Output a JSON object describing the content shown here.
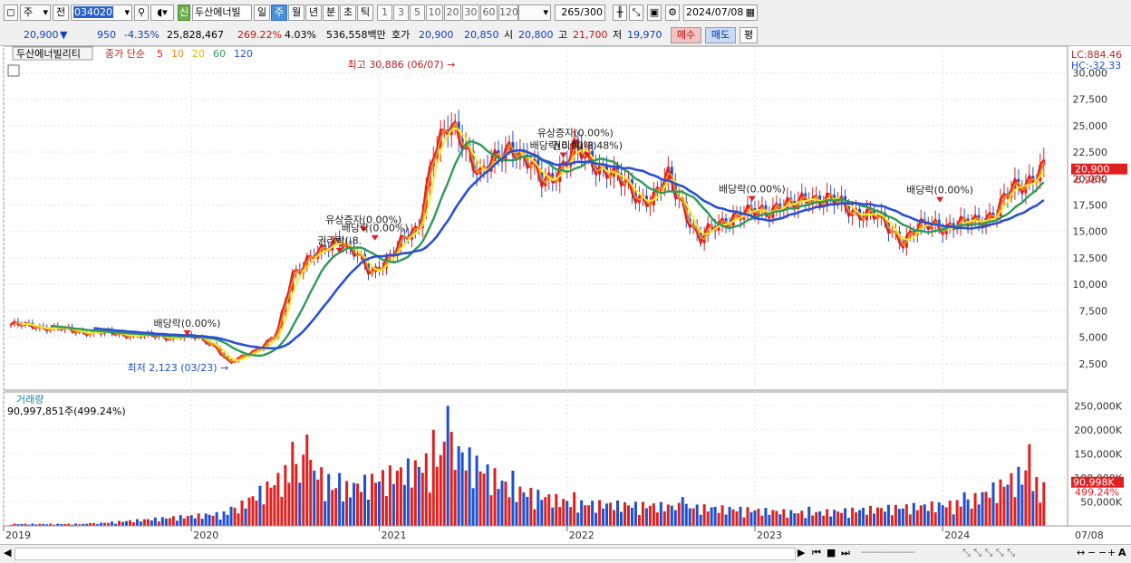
{
  "toolbar": {
    "period_select": "주",
    "compare_select": "전",
    "code": "034020",
    "new_badge": "신",
    "stock_name": "두산에너빌",
    "periods": [
      "일",
      "주",
      "월",
      "년",
      "분",
      "초",
      "틱"
    ],
    "active_period": "주",
    "intervals": [
      "1",
      "3",
      "5",
      "10",
      "20",
      "30",
      "60",
      "120"
    ],
    "count_value": "265",
    "count_total": "/300",
    "date": "2024/07/08"
  },
  "quote": {
    "price": "20,900",
    "arrow": "▼",
    "change": "950",
    "change_pct": "-4.35%",
    "volume": "25,828,467",
    "vol_ratio": "269.22%",
    "turnover": "4.03%",
    "amount": "536,558백만",
    "hoga_label": "호가",
    "ask": "20,900",
    "bid": "20,850",
    "open_label": "시",
    "open": "20,800",
    "high_label": "고",
    "high": "21,700",
    "low_label": "저",
    "low": "19,970",
    "buy_button": "매수",
    "sell_button": "매도",
    "eval_button": "평"
  },
  "colors": {
    "up": "#e02020",
    "down": "#1d4fd0",
    "ma5": "#e02020",
    "ma10": "#f08c1e",
    "ma20": "#f5ec2e",
    "ma60": "#2f9a58",
    "ma120": "#2a4fd6"
  },
  "chart_data": {
    "type": "candlestick",
    "title": "두산에너빌리티",
    "ma_legend": {
      "label": "종가 단순",
      "periods": [
        "5",
        "10",
        "20",
        "60",
        "120"
      ]
    },
    "y_axis": {
      "range": [
        0,
        32000
      ],
      "ticks": [
        "2,500",
        "5,000",
        "7,500",
        "10,000",
        "12,500",
        "15,000",
        "17,500",
        "20,000",
        "22,500",
        "25,000",
        "27,500",
        "30,000"
      ]
    },
    "x_axis": {
      "labels": [
        "2019",
        "2020",
        "2021",
        "2022",
        "2023",
        "2024"
      ],
      "last_label": "07/08"
    },
    "lc_label": "LC:884.46",
    "hc_label": "HC:-32.33",
    "current_price_label": "20,900",
    "current_pct_label": "6.96%",
    "annotations": [
      {
        "text": "최고 30,886 (06/07)",
        "x": "2021-06-07",
        "price": 30886,
        "kind": "high"
      },
      {
        "text": "최저 2,123 (03/23)",
        "x": "2020-03-23",
        "price": 2123,
        "kind": "low"
      },
      {
        "text": "배당락(0.00%)",
        "x": "2019-12-23",
        "price": 6000
      },
      {
        "text": "권리락(-8.",
        "x": "2020-10-15",
        "price": 13800
      },
      {
        "text": "유상증자(0.00%)",
        "x": "2020-12-01",
        "price": 15800
      },
      {
        "text": "배당락(0.00%)",
        "x": "2020-12-23",
        "price": 15000
      },
      {
        "text": "유상증자(0.00%)",
        "x": "2022-01-17",
        "price": 24000
      },
      {
        "text": "배당락(0.00%)",
        "x": "2021-12-24",
        "price": 22800
      },
      {
        "text": "권리락(-3.48%)",
        "x": "2022-02-10",
        "price": 22800
      },
      {
        "text": "배당락(0.00%)",
        "x": "2022-12-26",
        "price": 18700
      },
      {
        "text": "배당락(0.00%)",
        "x": "2023-12-26",
        "price": 18600
      }
    ],
    "weekly_close_keypoints": [
      {
        "x": "2019-01",
        "close": 6200
      },
      {
        "x": "2019-03",
        "close": 6000
      },
      {
        "x": "2019-05",
        "close": 5600
      },
      {
        "x": "2019-07",
        "close": 5400
      },
      {
        "x": "2019-09",
        "close": 5200
      },
      {
        "x": "2019-11",
        "close": 5000
      },
      {
        "x": "2019-12",
        "close": 5100
      },
      {
        "x": "2020-01",
        "close": 4900
      },
      {
        "x": "2020-02",
        "close": 4300
      },
      {
        "x": "2020-03",
        "close": 2500
      },
      {
        "x": "2020-04",
        "close": 3300
      },
      {
        "x": "2020-05",
        "close": 4100
      },
      {
        "x": "2020-06",
        "close": 5200
      },
      {
        "x": "2020-07",
        "close": 11000
      },
      {
        "x": "2020-08",
        "close": 12500
      },
      {
        "x": "2020-09",
        "close": 13000
      },
      {
        "x": "2020-10",
        "close": 14500
      },
      {
        "x": "2020-11",
        "close": 13000
      },
      {
        "x": "2020-12",
        "close": 10800
      },
      {
        "x": "2021-01",
        "close": 12500
      },
      {
        "x": "2021-02",
        "close": 14000
      },
      {
        "x": "2021-03",
        "close": 15000
      },
      {
        "x": "2021-04",
        "close": 23000
      },
      {
        "x": "2021-05",
        "close": 24500
      },
      {
        "x": "2021-06",
        "close": 23500
      },
      {
        "x": "2021-07",
        "close": 20500
      },
      {
        "x": "2021-08",
        "close": 21500
      },
      {
        "x": "2021-09",
        "close": 23500
      },
      {
        "x": "2021-10",
        "close": 21500
      },
      {
        "x": "2021-11",
        "close": 19500
      },
      {
        "x": "2021-12",
        "close": 21000
      },
      {
        "x": "2022-01",
        "close": 22500
      },
      {
        "x": "2022-02",
        "close": 21800
      },
      {
        "x": "2022-03",
        "close": 21000
      },
      {
        "x": "2022-04",
        "close": 19500
      },
      {
        "x": "2022-05",
        "close": 18500
      },
      {
        "x": "2022-06",
        "close": 18000
      },
      {
        "x": "2022-07",
        "close": 20000
      },
      {
        "x": "2022-08",
        "close": 17500
      },
      {
        "x": "2022-09",
        "close": 14000
      },
      {
        "x": "2022-10",
        "close": 15500
      },
      {
        "x": "2022-11",
        "close": 16500
      },
      {
        "x": "2022-12",
        "close": 16500
      },
      {
        "x": "2023-01",
        "close": 17000
      },
      {
        "x": "2023-02",
        "close": 17500
      },
      {
        "x": "2023-03",
        "close": 17200
      },
      {
        "x": "2023-04",
        "close": 18500
      },
      {
        "x": "2023-05",
        "close": 18000
      },
      {
        "x": "2023-06",
        "close": 17500
      },
      {
        "x": "2023-07",
        "close": 17000
      },
      {
        "x": "2023-08",
        "close": 16500
      },
      {
        "x": "2023-09",
        "close": 15500
      },
      {
        "x": "2023-10",
        "close": 14200
      },
      {
        "x": "2023-11",
        "close": 15200
      },
      {
        "x": "2023-12",
        "close": 15800
      },
      {
        "x": "2024-01",
        "close": 15500
      },
      {
        "x": "2024-02",
        "close": 15600
      },
      {
        "x": "2024-03",
        "close": 16300
      },
      {
        "x": "2024-04",
        "close": 16800
      },
      {
        "x": "2024-05",
        "close": 19000
      },
      {
        "x": "2024-06",
        "close": 20000
      },
      {
        "x": "2024-07",
        "close": 20900
      }
    ],
    "volume_panel": {
      "label": "거래량",
      "current_label": "90,997,851주(499.24%)",
      "y_ticks": [
        "50,000K",
        "100,000K",
        "150,000K",
        "200,000K",
        "250,000K"
      ],
      "current_value_label": "90,998K",
      "current_pct_label": "499.24%",
      "range": [
        0,
        260000
      ],
      "keypoints_k": [
        {
          "x": "2019-06",
          "volume": 6000
        },
        {
          "x": "2020-03",
          "volume": 40000
        },
        {
          "x": "2020-07",
          "volume": 175000
        },
        {
          "x": "2020-08",
          "volume": 190000
        },
        {
          "x": "2020-10",
          "volume": 110000
        },
        {
          "x": "2021-04",
          "volume": 200000
        },
        {
          "x": "2021-05",
          "volume": 250000
        },
        {
          "x": "2021-09",
          "volume": 115000
        },
        {
          "x": "2022-01",
          "volume": 70000
        },
        {
          "x": "2022-08",
          "volume": 60000
        },
        {
          "x": "2023-04",
          "volume": 40000
        },
        {
          "x": "2024-02",
          "volume": 70000
        },
        {
          "x": "2024-06",
          "volume": 170000
        },
        {
          "x": "2024-07",
          "volume": 91000
        }
      ]
    }
  }
}
